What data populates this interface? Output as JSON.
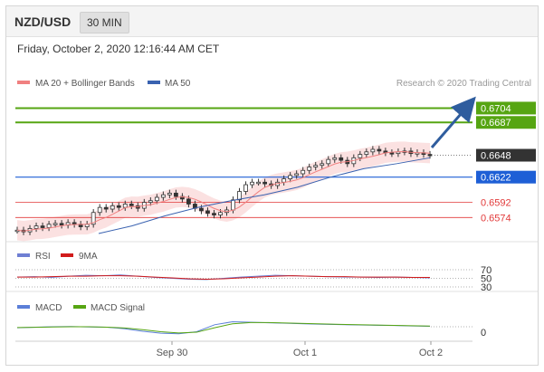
{
  "header": {
    "pair": "NZD/USD",
    "timeframe": "30 MIN"
  },
  "datetime": "Friday, October 2, 2020 12:16:44 AM CET",
  "legend": {
    "ma20_bollinger": "MA 20 + Bollinger Bands",
    "ma50": "MA 50",
    "credit": "Research © 2020 Trading Central",
    "rsi": "RSI",
    "rsi_ma": "9MA",
    "macd": "MACD",
    "macd_signal": "MACD Signal"
  },
  "colors": {
    "up_target": "#56a512",
    "pivot": "#1e5fd6",
    "support": "#e23a3a",
    "candle": "#333333",
    "bollinger": "#fadada",
    "ma20": "#f08080",
    "ma50": "#3a62b0",
    "current": "#333333",
    "arrow": "#2f5d9e",
    "rsi": "#6f7fd3",
    "rsi_ma": "#d11b1b",
    "macd": "#5b7fd8",
    "macd_signal": "#56a512"
  },
  "chart_data": [
    {
      "type": "candlestick",
      "title": "NZD/USD 30 MIN",
      "x_labels": [
        "Sep 30",
        "Oct 1",
        "Oct 2"
      ],
      "levels": [
        {
          "label": "0.6704",
          "value": 0.6704,
          "kind": "target"
        },
        {
          "label": "0.6687",
          "value": 0.6687,
          "kind": "target"
        },
        {
          "label": "0.6648",
          "value": 0.6648,
          "kind": "current"
        },
        {
          "label": "0.6622",
          "value": 0.6622,
          "kind": "pivot"
        },
        {
          "label": "0.6592",
          "value": 0.6592,
          "kind": "support"
        },
        {
          "label": "0.6574",
          "value": 0.6574,
          "kind": "support"
        }
      ],
      "ylim": [
        0.6555,
        0.6712
      ],
      "close_series": [
        0.6559,
        0.6557,
        0.6561,
        0.6564,
        0.6562,
        0.6566,
        0.6567,
        0.6565,
        0.6568,
        0.6566,
        0.6563,
        0.6566,
        0.658,
        0.6586,
        0.6584,
        0.6588,
        0.6586,
        0.659,
        0.6588,
        0.6585,
        0.6592,
        0.6594,
        0.6598,
        0.6601,
        0.6603,
        0.6599,
        0.6596,
        0.659,
        0.6585,
        0.6582,
        0.6579,
        0.6577,
        0.658,
        0.6583,
        0.6595,
        0.6605,
        0.6613,
        0.6616,
        0.6616,
        0.6614,
        0.6612,
        0.6616,
        0.662,
        0.6624,
        0.6626,
        0.663,
        0.6634,
        0.6636,
        0.6638,
        0.6643,
        0.6645,
        0.6642,
        0.6638,
        0.6645,
        0.6649,
        0.6652,
        0.6655,
        0.6653,
        0.6651,
        0.665,
        0.6652,
        0.6653,
        0.665,
        0.6651,
        0.6649,
        0.6648
      ],
      "ma50_series": [
        0.6555,
        0.6564,
        0.6576,
        0.6586,
        0.6594,
        0.6601,
        0.661,
        0.6622,
        0.6632,
        0.6638,
        0.6645
      ]
    },
    {
      "type": "line",
      "title": "RSI",
      "series": [
        {
          "name": "RSI"
        },
        {
          "name": "9MA"
        }
      ],
      "levels": [
        {
          "label": "70",
          "value": 70
        },
        {
          "label": "50",
          "value": 50
        },
        {
          "label": "30",
          "value": 30
        }
      ],
      "ylim": [
        30,
        70
      ],
      "rsi_values": [
        53,
        54,
        52,
        55,
        57,
        56,
        58,
        55,
        52,
        50,
        48,
        47,
        50,
        53,
        55,
        57,
        56,
        55,
        54,
        53,
        53,
        52,
        53,
        52,
        51
      ],
      "ma_values": [
        53,
        53,
        54,
        55,
        55,
        56,
        56,
        55,
        53,
        51,
        49,
        48,
        49,
        51,
        53,
        55,
        56,
        55,
        54,
        54,
        53,
        53,
        53,
        52,
        52
      ]
    },
    {
      "type": "line",
      "title": "MACD",
      "series": [
        {
          "name": "MACD"
        },
        {
          "name": "MACD Signal"
        }
      ],
      "levels": [
        {
          "label": "0",
          "value": 0
        }
      ],
      "ylim": [
        -1,
        1
      ],
      "macd_values": [
        -0.1,
        -0.05,
        0.0,
        0.02,
        -0.02,
        -0.05,
        -0.2,
        -0.45,
        -0.65,
        -0.7,
        -0.5,
        0.2,
        0.5,
        0.45,
        0.4,
        0.35,
        0.3,
        0.25,
        0.22,
        0.18,
        0.15,
        0.12,
        0.08,
        0.05
      ],
      "signal_values": [
        -0.08,
        -0.06,
        -0.02,
        0.0,
        0.0,
        -0.04,
        -0.12,
        -0.3,
        -0.5,
        -0.62,
        -0.55,
        -0.1,
        0.3,
        0.42,
        0.42,
        0.38,
        0.33,
        0.28,
        0.24,
        0.2,
        0.17,
        0.14,
        0.1,
        0.07
      ]
    }
  ]
}
